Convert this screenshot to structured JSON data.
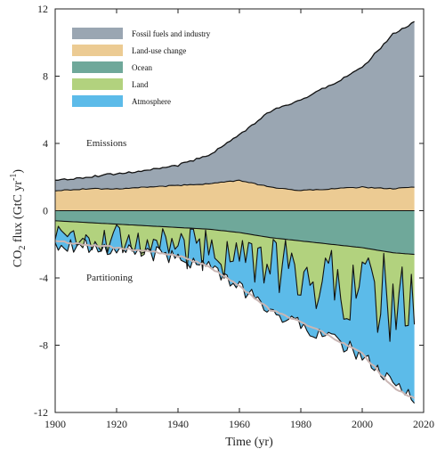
{
  "chart_data": {
    "type": "area",
    "xlabel": "Time (yr)",
    "ylabel": {
      "main": "CO",
      "sub": "2",
      "mid": " flux (GtC yr",
      "sup": "-1",
      "end": ")"
    },
    "xlim": [
      1900,
      2020
    ],
    "ylim": [
      -12,
      12
    ],
    "xticks": [
      1900,
      1920,
      1940,
      1960,
      1980,
      2000,
      2020
    ],
    "yticks": [
      -12,
      -8,
      -4,
      0,
      4,
      8,
      12
    ],
    "grid": false,
    "legend_position": "top-left",
    "annotations": {
      "emissions": "Emissions",
      "partitioning": "Partitioning"
    },
    "colors": {
      "fossil": "#9aa6b2",
      "landuse": "#eccb93",
      "ocean": "#6fa89a",
      "land": "#b2d27e",
      "atmosphere": "#5cbbe9",
      "mirror": "#c9b6b4"
    },
    "series": [
      {
        "name": "Fossil fuels and industry",
        "color_key": "fossil"
      },
      {
        "name": "Land-use change",
        "color_key": "landuse"
      },
      {
        "name": "Ocean",
        "color_key": "ocean"
      },
      {
        "name": "Land",
        "color_key": "land"
      },
      {
        "name": "Atmosphere",
        "color_key": "atmosphere"
      }
    ],
    "data": {
      "years": [
        1900,
        1910,
        1920,
        1930,
        1940,
        1950,
        1960,
        1970,
        1980,
        1990,
        2000,
        2010,
        2017
      ],
      "emissions_landuse_top": [
        1.2,
        1.3,
        1.3,
        1.4,
        1.5,
        1.6,
        1.8,
        1.4,
        1.2,
        1.3,
        1.4,
        1.3,
        1.4
      ],
      "emissions_total_top": [
        1.8,
        2.0,
        2.2,
        2.4,
        2.7,
        3.3,
        4.5,
        5.9,
        6.6,
        7.5,
        8.5,
        10.5,
        11.2
      ],
      "ocean_bottom": [
        -0.6,
        -0.7,
        -0.8,
        -0.9,
        -1.0,
        -1.1,
        -1.3,
        -1.6,
        -1.8,
        -2.0,
        -2.2,
        -2.5,
        -2.6
      ],
      "land_bottom_mean": [
        -1.4,
        -1.6,
        -1.7,
        -1.9,
        -2.1,
        -2.4,
        -2.8,
        -3.3,
        -3.8,
        -4.2,
        -4.6,
        -5.3,
        -5.8
      ],
      "total_sinks_bottom": [
        -1.9,
        -2.1,
        -2.3,
        -2.5,
        -2.8,
        -3.3,
        -4.6,
        -5.9,
        -6.8,
        -7.6,
        -8.6,
        -10.4,
        -11.0
      ],
      "emissions_mirror": [
        -1.8,
        -2.0,
        -2.2,
        -2.4,
        -2.7,
        -3.3,
        -4.5,
        -5.9,
        -6.6,
        -7.5,
        -8.5,
        -10.5,
        -11.2
      ]
    }
  }
}
